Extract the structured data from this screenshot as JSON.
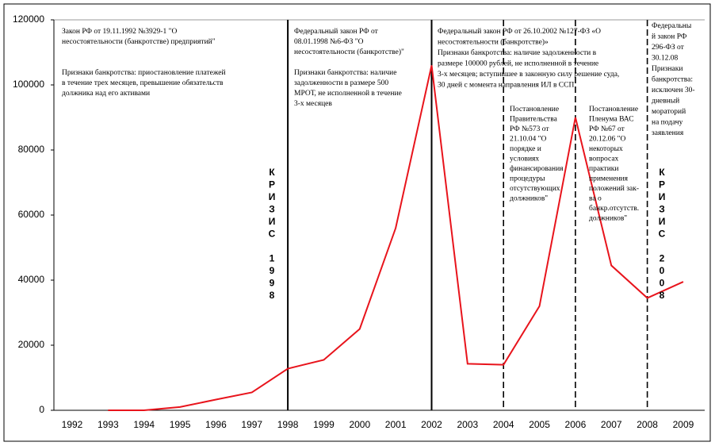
{
  "chart_data": {
    "type": "line",
    "categories": [
      "1992",
      "1993",
      "1994",
      "1995",
      "1996",
      "1997",
      "1998",
      "1999",
      "2000",
      "2001",
      "2002",
      "2003",
      "2004",
      "2005",
      "2006",
      "2007",
      "2008",
      "2009"
    ],
    "series": [
      {
        "color": "#e8141c",
        "values": [
          null,
          0,
          0,
          1000,
          3300,
          5500,
          12800,
          15500,
          25000,
          56000,
          106000,
          14300,
          14000,
          32000,
          90000,
          44500,
          34500,
          39500
        ]
      }
    ],
    "ylim": [
      0,
      120000
    ],
    "yticks": [
      0,
      20000,
      40000,
      60000,
      80000,
      100000,
      120000
    ],
    "vlines": [
      {
        "x": "1998",
        "style": "solid"
      },
      {
        "x": "2002",
        "style": "solid"
      },
      {
        "x": "2004",
        "style": "dashed"
      },
      {
        "x": "2006",
        "style": "dashed"
      },
      {
        "x": "2008",
        "style": "dashed"
      }
    ],
    "annotations": [
      {
        "lines": [
          "Закон РФ от 19.11.1992 №3929-1 \"О",
          "несостоятельности (банкротстве) предприятий\""
        ]
      },
      {
        "lines": [
          "Признаки банкротства: приостановление платежей",
          "в течение трех месяцев, превышение обязательств",
          "должника над его активами"
        ]
      },
      {
        "lines": [
          "Федеральный закон РФ от",
          "08.01.1998 №6-ФЗ \"О",
          "несостоятельности (банкротстве)\""
        ]
      },
      {
        "lines": [
          "Признаки банкротства: наличие",
          "задолженности в размере 500",
          "МРОТ, не исполненной в течение",
          "3-х месяцев"
        ]
      },
      {
        "lines": [
          "Федеральный закон РФ от 26.10.2002 №127-ФЗ «О",
          "несостоятельности (банкротстве)»",
          "Признаки банкротства: наличие задолженности в",
          "размере 100000 рублей, не исполненной в течение",
          "3-х месяцев; вступившее в законную силу решение суда,",
          "30 дней с момента направления ИЛ в ССП"
        ]
      },
      {
        "lines": [
          "Постановление",
          "Правительства",
          "РФ №573 от",
          "21.10.04 \"О",
          "порядке и",
          "условиях",
          "финансирования",
          "процедуры",
          "отсутствующих",
          "должников\""
        ]
      },
      {
        "lines": [
          "Постановление",
          "Пленума ВАС",
          "РФ №67 от",
          "20.12.06 \"О",
          "некоторых",
          "вопросах",
          "практики",
          "применения",
          "положений зак-",
          "ва о",
          "банкр.отсутств.",
          "должников\""
        ]
      },
      {
        "lines": [
          "Федеральны",
          "й закон РФ",
          "296-ФЗ от",
          "30.12.08",
          "Признаки",
          "банкротства:",
          "исключен 30-",
          "дневный",
          "мораторий",
          "на подачу",
          "заявления"
        ]
      }
    ],
    "crisis_labels": [
      "КРИЗИС 1998",
      "КРИЗИС 2008"
    ]
  }
}
